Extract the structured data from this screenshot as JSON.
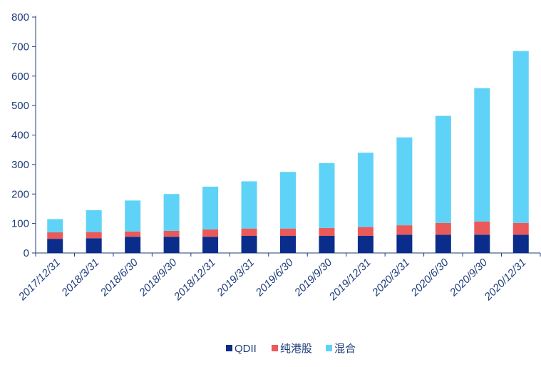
{
  "chart_data": {
    "type": "bar",
    "stacked": true,
    "categories": [
      "2017/12/31",
      "2018/3/31",
      "2018/6/30",
      "2018/9/30",
      "2018/12/31",
      "2019/3/31",
      "2019/6/30",
      "2019/9/30",
      "2019/12/31",
      "2020/3/31",
      "2020/6/30",
      "2020/9/30",
      "2020/12/31"
    ],
    "series": [
      {
        "name": "QDII",
        "color": "#0a2d8c",
        "values": [
          48,
          50,
          55,
          55,
          55,
          58,
          58,
          58,
          58,
          62,
          62,
          62,
          62
        ]
      },
      {
        "name": "纯港股",
        "color": "#ea5a5a",
        "values": [
          22,
          21,
          18,
          20,
          25,
          25,
          25,
          27,
          30,
          32,
          40,
          45,
          40
        ]
      },
      {
        "name": "混合",
        "color": "#5fd3f7",
        "values": [
          45,
          74,
          105,
          125,
          145,
          160,
          192,
          220,
          252,
          298,
          363,
          452,
          583
        ]
      }
    ],
    "ylim": [
      0,
      800
    ],
    "yticks": [
      0,
      100,
      200,
      300,
      400,
      500,
      600,
      700,
      800
    ],
    "grid": false,
    "legend_position": "bottom",
    "title": "",
    "xlabel": "",
    "ylabel": ""
  },
  "legend": {
    "items": [
      {
        "label": "QDII",
        "color": "#0a2d8c"
      },
      {
        "label": "纯港股",
        "color": "#ea5a5a"
      },
      {
        "label": "混合",
        "color": "#5fd3f7"
      }
    ]
  }
}
